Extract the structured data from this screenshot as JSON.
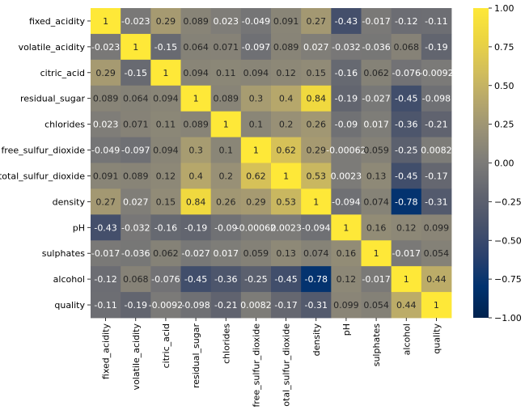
{
  "chart_data": {
    "type": "heatmap",
    "title": "",
    "xlabel": "",
    "ylabel": "",
    "rows": [
      "fixed_acidity",
      "volatile_acidity",
      "citric_acid",
      "residual_sugar",
      "chlorides",
      "free_sulfur_dioxide",
      "total_sulfur_dioxide",
      "density",
      "pH",
      "sulphates",
      "alcohol",
      "quality"
    ],
    "columns": [
      "fixed_acidity",
      "volatile_acidity",
      "citric_acid",
      "residual_sugar",
      "chlorides",
      "free_sulfur_dioxide",
      "total_sulfur_dioxide",
      "density",
      "pH",
      "sulphates",
      "alcohol",
      "quality"
    ],
    "values": [
      [
        1,
        -0.023,
        0.29,
        0.089,
        0.023,
        -0.049,
        0.091,
        0.27,
        -0.43,
        -0.017,
        -0.12,
        -0.11
      ],
      [
        -0.023,
        1,
        -0.15,
        0.064,
        0.071,
        -0.097,
        0.089,
        0.027,
        -0.032,
        -0.036,
        0.068,
        -0.19
      ],
      [
        0.29,
        -0.15,
        1,
        0.094,
        0.11,
        0.094,
        0.12,
        0.15,
        -0.16,
        0.062,
        -0.076,
        -0.0092
      ],
      [
        0.089,
        0.064,
        0.094,
        1,
        0.089,
        0.3,
        0.4,
        0.84,
        -0.19,
        -0.027,
        -0.45,
        -0.098
      ],
      [
        0.023,
        0.071,
        0.11,
        0.089,
        1,
        0.1,
        0.2,
        0.26,
        -0.09,
        0.017,
        -0.36,
        -0.21
      ],
      [
        -0.049,
        -0.097,
        0.094,
        0.3,
        0.1,
        1,
        0.62,
        0.29,
        -0.00062,
        0.059,
        -0.25,
        0.0082
      ],
      [
        0.091,
        0.089,
        0.12,
        0.4,
        0.2,
        0.62,
        1,
        0.53,
        0.0023,
        0.13,
        -0.45,
        -0.17
      ],
      [
        0.27,
        0.027,
        0.15,
        0.84,
        0.26,
        0.29,
        0.53,
        1,
        -0.094,
        0.074,
        -0.78,
        -0.31
      ],
      [
        -0.43,
        -0.032,
        -0.16,
        -0.19,
        -0.09,
        -0.00062,
        0.0023,
        -0.094,
        1,
        0.16,
        0.12,
        0.099
      ],
      [
        -0.017,
        -0.036,
        0.062,
        -0.027,
        0.017,
        0.059,
        0.13,
        0.074,
        0.16,
        1,
        -0.017,
        0.054
      ],
      [
        -0.12,
        0.068,
        -0.076,
        -0.45,
        -0.36,
        -0.25,
        -0.45,
        -0.78,
        0.12,
        -0.017,
        1,
        0.44
      ],
      [
        -0.11,
        -0.19,
        -0.0092,
        -0.098,
        -0.21,
        0.0082,
        -0.17,
        -0.31,
        0.099,
        0.054,
        0.44,
        1
      ]
    ],
    "annotations": [
      [
        "1",
        "-0.023",
        "0.29",
        "0.089",
        "0.023",
        "-0.049",
        "0.091",
        "0.27",
        "-0.43",
        "-0.017",
        "-0.12",
        "-0.11"
      ],
      [
        "-0.023",
        "1",
        "-0.15",
        "0.064",
        "0.071",
        "-0.097",
        "0.089",
        "0.027",
        "-0.032",
        "-0.036",
        "0.068",
        "-0.19"
      ],
      [
        "0.29",
        "-0.15",
        "1",
        "0.094",
        "0.11",
        "0.094",
        "0.12",
        "0.15",
        "-0.16",
        "0.062",
        "-0.076",
        "-0.0092"
      ],
      [
        "0.089",
        "0.064",
        "0.094",
        "1",
        "0.089",
        "0.3",
        "0.4",
        "0.84",
        "-0.19",
        "-0.027",
        "-0.45",
        "-0.098"
      ],
      [
        "0.023",
        "0.071",
        "0.11",
        "0.089",
        "1",
        "0.1",
        "0.2",
        "0.26",
        "-0.09",
        "0.017",
        "-0.36",
        "-0.21"
      ],
      [
        "-0.049",
        "-0.097",
        "0.094",
        "0.3",
        "0.1",
        "1",
        "0.62",
        "0.29",
        "-0.00062",
        "0.059",
        "-0.25",
        "0.0082"
      ],
      [
        "0.091",
        "0.089",
        "0.12",
        "0.4",
        "0.2",
        "0.62",
        "1",
        "0.53",
        "0.0023",
        "0.13",
        "-0.45",
        "-0.17"
      ],
      [
        "0.27",
        "0.027",
        "0.15",
        "0.84",
        "0.26",
        "0.29",
        "0.53",
        "1",
        "-0.094",
        "0.074",
        "-0.78",
        "-0.31"
      ],
      [
        "-0.43",
        "-0.032",
        "-0.16",
        "-0.19",
        "-0.09",
        "-0.00062",
        "0.0023",
        "-0.094",
        "1",
        "0.16",
        "0.12",
        "0.099"
      ],
      [
        "-0.017",
        "-0.036",
        "0.062",
        "-0.027",
        "0.017",
        "0.059",
        "0.13",
        "0.074",
        "0.16",
        "1",
        "-0.017",
        "0.054"
      ],
      [
        "-0.12",
        "0.068",
        "-0.076",
        "-0.45",
        "-0.36",
        "-0.25",
        "-0.45",
        "-0.78",
        "0.12",
        "-0.017",
        "1",
        "0.44"
      ],
      [
        "-0.11",
        "-0.19",
        "-0.0092",
        "-0.098",
        "-0.21",
        "0.0082",
        "-0.17",
        "-0.31",
        "0.099",
        "0.054",
        "0.44",
        "1"
      ]
    ],
    "colormap": "cividis",
    "vmin": -1,
    "vmax": 1,
    "colorbar_ticks": [
      "1.00",
      "0.75",
      "0.50",
      "0.25",
      "0.00",
      "−0.25",
      "−0.50",
      "−0.75",
      "−1.00"
    ],
    "colorbar_tick_values": [
      1,
      0.75,
      0.5,
      0.25,
      0,
      -0.25,
      -0.5,
      -0.75,
      -1
    ],
    "colorbar_position": "right",
    "grid": false
  }
}
